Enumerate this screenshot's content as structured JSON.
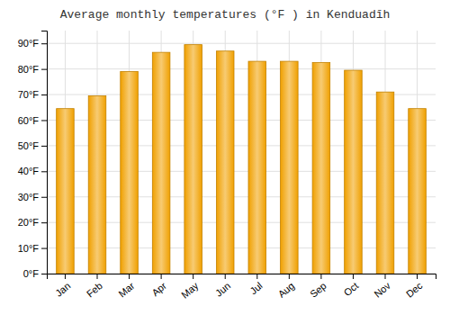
{
  "chart_data": {
    "type": "bar",
    "title": "Average monthly temperatures (°F ) in Kenduadīh",
    "categories": [
      "Jan",
      "Feb",
      "Mar",
      "Apr",
      "May",
      "Jun",
      "Jul",
      "Aug",
      "Sep",
      "Oct",
      "Nov",
      "Dec"
    ],
    "values": [
      64.5,
      69.5,
      79.0,
      86.5,
      89.5,
      87.0,
      83.0,
      83.0,
      82.5,
      79.5,
      71.0,
      64.5
    ],
    "color": "#F0A000",
    "ylim": [
      0,
      95
    ],
    "yticks": [
      {
        "value": 0,
        "label": "0°F"
      },
      {
        "value": 10,
        "label": "10°F"
      },
      {
        "value": 20,
        "label": "20°F"
      },
      {
        "value": 30,
        "label": "30°F"
      },
      {
        "value": 40,
        "label": "40°F"
      },
      {
        "value": 50,
        "label": "50°F"
      },
      {
        "value": 60,
        "label": "60°F"
      },
      {
        "value": 70,
        "label": "70°F"
      },
      {
        "value": 80,
        "label": "80°F"
      },
      {
        "value": 90,
        "label": "90°F"
      }
    ],
    "grid": true
  }
}
